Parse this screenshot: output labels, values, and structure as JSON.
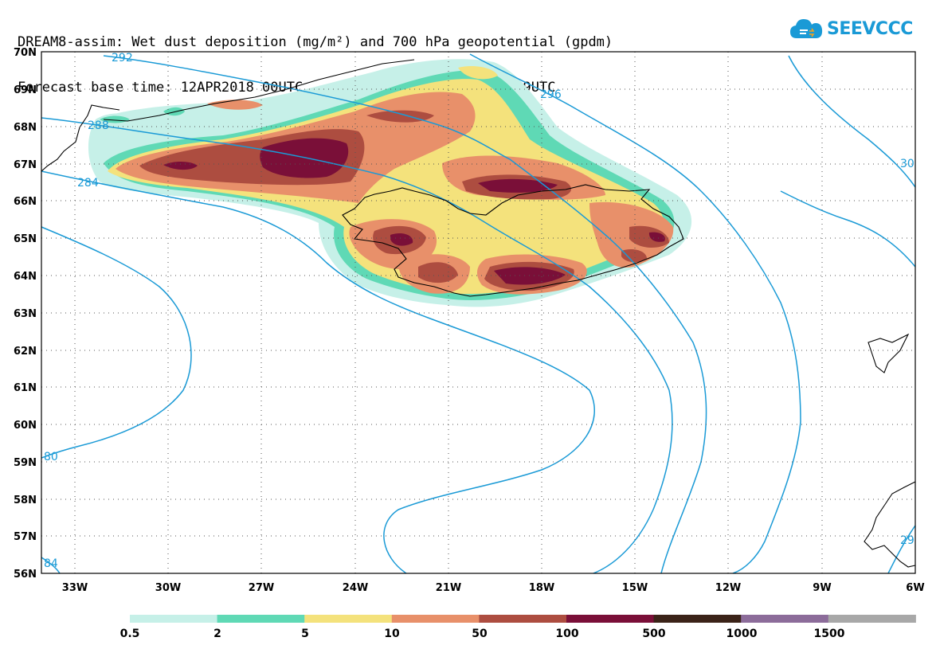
{
  "header": {
    "title_line1": "DREAM8-assim: Wet dust deposition (mg/m²) and 700 hPa geopotential (gpdm)",
    "title_line2": "Forecast base time: 12APR2018 00UTC    Valid time: 14APR2018 09UTC"
  },
  "logo": {
    "text": "SEEVCCC",
    "icon": "cloud-icon",
    "color": "#1a9ad6"
  },
  "map": {
    "lat_labels": [
      "70N",
      "69N",
      "68N",
      "67N",
      "66N",
      "65N",
      "64N",
      "63N",
      "62N",
      "61N",
      "60N",
      "59N",
      "58N",
      "57N",
      "56N"
    ],
    "lon_labels": [
      "33W",
      "30W",
      "27W",
      "24W",
      "21W",
      "18W",
      "15W",
      "12W",
      "9W",
      "6W"
    ],
    "lat_range": [
      56,
      70
    ],
    "lon_range": [
      -34,
      -6
    ],
    "grid": "dotted",
    "contour_color": "#1a9ad6",
    "contour_labels": [
      "292",
      "296",
      "288",
      "284",
      "30",
      "80",
      "84",
      "29"
    ]
  },
  "legend": {
    "colors": [
      "#c6f0e8",
      "#5fd9b5",
      "#f4e27c",
      "#e8906a",
      "#ad4d40",
      "#7a0f38",
      "#3b2318",
      "#8c6c9a",
      "#a8a8a8"
    ],
    "labels": [
      "0.5",
      "2",
      "5",
      "10",
      "50",
      "100",
      "500",
      "1000",
      "1500"
    ]
  }
}
